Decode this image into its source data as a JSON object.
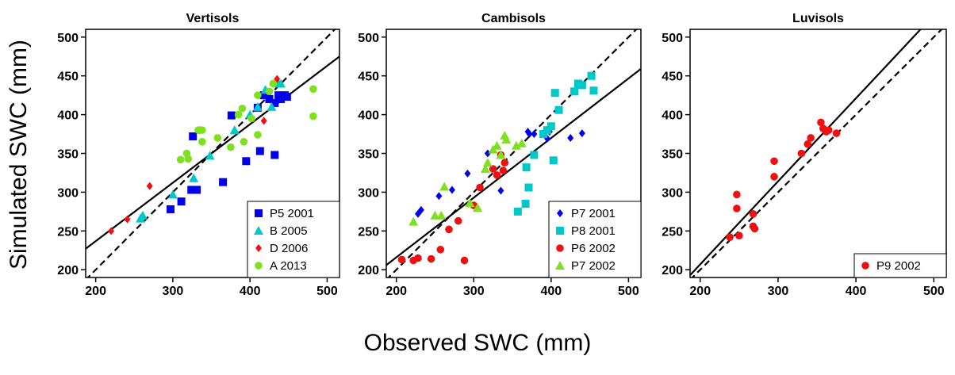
{
  "axis_titles": {
    "x": "Observed SWC (mm)",
    "y": "Simulated SWC (mm)"
  },
  "chart_data": [
    {
      "type": "scatter",
      "title": "Vertisols",
      "xlim": [
        187,
        516
      ],
      "ylim": [
        190,
        510
      ],
      "xticks": [
        200,
        300,
        400,
        500
      ],
      "yticks": [
        200,
        250,
        300,
        350,
        400,
        450,
        500
      ],
      "legend": "bottom-right",
      "lines": [
        {
          "style": "solid",
          "x": [
            187,
            516
          ],
          "y": [
            227,
            475
          ]
        },
        {
          "style": "dashed",
          "x": [
            187,
            516
          ],
          "y": [
            187,
            516
          ]
        }
      ],
      "series": [
        {
          "name": "P5 2001",
          "color": "#0000ee",
          "marker": "square",
          "x": [
            297,
            311,
            324,
            331,
            326,
            365,
            395,
            413,
            432,
            376,
            410,
            418,
            425,
            432,
            440,
            445,
            448,
            437
          ],
          "y": [
            278,
            288,
            303,
            303,
            372,
            313,
            340,
            353,
            348,
            399,
            409,
            425,
            420,
            415,
            420,
            425,
            423,
            425
          ]
        },
        {
          "name": "B 2005",
          "color": "#00c8c8",
          "marker": "triangle",
          "x": [
            258,
            261,
            300,
            327,
            348,
            380,
            400,
            410,
            420,
            437,
            440,
            428
          ],
          "y": [
            266,
            270,
            297,
            318,
            347,
            380,
            400,
            410,
            432,
            440,
            440,
            410
          ]
        },
        {
          "name": "D 2006",
          "color": "#ee1111",
          "marker": "diamond",
          "x": [
            220,
            241,
            270,
            335,
            418,
            435
          ],
          "y": [
            250,
            265,
            308,
            380,
            392,
            446
          ]
        },
        {
          "name": "A 2013",
          "color": "#7fe020",
          "marker": "circle",
          "x": [
            310,
            318,
            320,
            333,
            338,
            358,
            375,
            385,
            390,
            392,
            402,
            410,
            410,
            425,
            430,
            482,
            482,
            338
          ],
          "y": [
            342,
            350,
            343,
            380,
            365,
            370,
            358,
            400,
            408,
            365,
            395,
            374,
            425,
            430,
            440,
            433,
            398,
            380
          ]
        }
      ]
    },
    {
      "type": "scatter",
      "title": "Cambisols",
      "xlim": [
        187,
        516
      ],
      "ylim": [
        190,
        510
      ],
      "xticks": [
        200,
        300,
        400,
        500
      ],
      "yticks": [
        200,
        250,
        300,
        350,
        400,
        450,
        500
      ],
      "legend": "bottom-right",
      "lines": [
        {
          "style": "solid",
          "x": [
            187,
            516
          ],
          "y": [
            206,
            459
          ]
        },
        {
          "style": "dashed",
          "x": [
            187,
            516
          ],
          "y": [
            187,
            516
          ]
        }
      ],
      "series": [
        {
          "name": "P7 2001",
          "color": "#0000ee",
          "marker": "diamond",
          "x": [
            228,
            232,
            255,
            272,
            292,
            318,
            335,
            370,
            378,
            395,
            425,
            440,
            398,
            372
          ],
          "y": [
            272,
            277,
            295,
            303,
            324,
            350,
            302,
            378,
            375,
            369,
            370,
            376,
            378,
            375
          ]
        },
        {
          "name": "P8 2001",
          "color": "#00c8c8",
          "marker": "square",
          "x": [
            357,
            367,
            371,
            378,
            368,
            395,
            400,
            403,
            405,
            410,
            430,
            435,
            440,
            452,
            455,
            390
          ],
          "y": [
            275,
            285,
            306,
            348,
            332,
            380,
            385,
            341,
            428,
            406,
            430,
            440,
            438,
            450,
            431,
            375
          ]
        },
        {
          "name": "P6 2002",
          "color": "#ee1111",
          "marker": "circle",
          "x": [
            207,
            222,
            228,
            245,
            257,
            268,
            280,
            288,
            300,
            308,
            325,
            330,
            335,
            338,
            340
          ],
          "y": [
            213,
            212,
            215,
            214,
            226,
            252,
            263,
            212,
            283,
            306,
            330,
            322,
            348,
            328,
            338
          ]
        },
        {
          "name": "P7 2002",
          "color": "#7fe020",
          "marker": "triangle",
          "x": [
            222,
            250,
            258,
            262,
            295,
            305,
            315,
            318,
            325,
            330,
            340,
            342,
            355,
            362,
            335
          ],
          "y": [
            262,
            270,
            270,
            307,
            286,
            280,
            330,
            338,
            355,
            360,
            373,
            368,
            360,
            363,
            348
          ]
        }
      ]
    },
    {
      "type": "scatter",
      "title": "Luvisols",
      "xlim": [
        187,
        516
      ],
      "ylim": [
        190,
        510
      ],
      "xticks": [
        200,
        300,
        400,
        500
      ],
      "yticks": [
        200,
        250,
        300,
        350,
        400,
        450,
        500
      ],
      "legend": "bottom-right",
      "lines": [
        {
          "style": "solid",
          "x": [
            187,
            483
          ],
          "y": [
            193,
            510
          ]
        },
        {
          "style": "dashed",
          "x": [
            187,
            516
          ],
          "y": [
            187,
            516
          ]
        }
      ],
      "series": [
        {
          "name": "P9 2002",
          "color": "#ee1111",
          "marker": "circle",
          "x": [
            238,
            247,
            247,
            250,
            268,
            268,
            270,
            295,
            295,
            330,
            338,
            342,
            355,
            358,
            365,
            362,
            375
          ],
          "y": [
            242,
            297,
            279,
            244,
            272,
            256,
            253,
            340,
            320,
            350,
            362,
            370,
            390,
            382,
            380,
            378,
            376
          ]
        }
      ]
    }
  ]
}
